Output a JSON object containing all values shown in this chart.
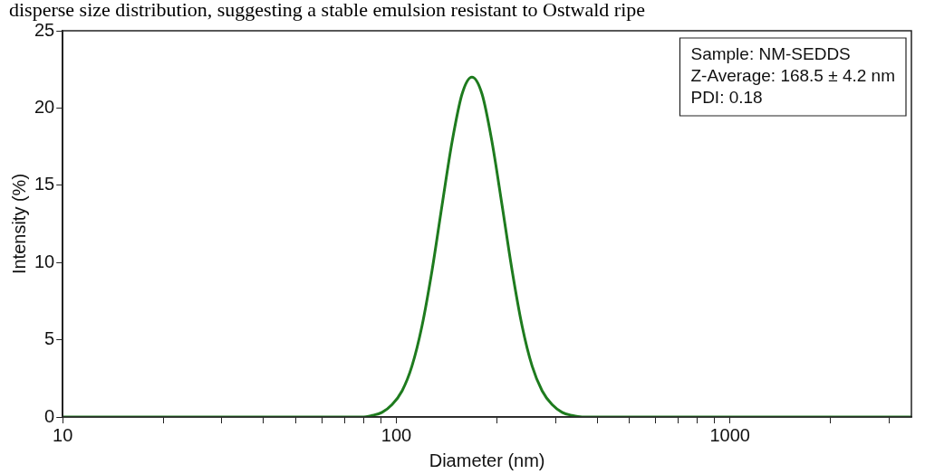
{
  "chart_data": {
    "type": "line",
    "xlabel": "Diameter (nm)",
    "ylabel": "Intensity (%)",
    "log": "x",
    "xlim": [
      10,
      3500
    ],
    "xticks": [
      10,
      {
        "value": 20,
        "label": null
      },
      {
        "value": 30,
        "label": null
      },
      {
        "value": 40,
        "label": null
      },
      {
        "value": 50,
        "label": null
      },
      {
        "value": 60,
        "label": null
      },
      {
        "value": 70,
        "label": null
      },
      {
        "value": 80,
        "label": null
      },
      {
        "value": 90,
        "label": null
      },
      100,
      {
        "value": 200,
        "label": null
      },
      {
        "value": 300,
        "label": null
      },
      {
        "value": 400,
        "label": null
      },
      {
        "value": 500,
        "label": null
      },
      {
        "value": 600,
        "label": null
      },
      {
        "value": 700,
        "label": null
      },
      {
        "value": 800,
        "label": null
      },
      {
        "value": 900,
        "label": null
      },
      1000,
      {
        "value": 2000,
        "label": null
      },
      {
        "value": 3000,
        "label": null
      }
    ],
    "ylim": [
      0,
      25
    ],
    "yticks": [
      0,
      5,
      10,
      15,
      20,
      25
    ],
    "grid": false,
    "legend": false,
    "marker": "none",
    "line_style": "solid",
    "annotations": [
      "disperse size distribution, suggesting a stable emulsion resistant to Ostwald ripe",
      "Sample: NM-SEDDS",
      "Z-Average: 168.5 ± 4.2 nm",
      "PDI: 0.18"
    ],
    "series": [
      {
        "color": "#1e7b1e",
        "x": [
          10,
          30,
          60,
          78.9,
          84.5,
          90.6,
          97.1,
          104.1,
          111.4,
          119.4,
          128,
          137.1,
          146.9,
          157.4,
          168.5,
          180.7,
          193.6,
          207.5,
          222.3,
          238.2,
          255.3,
          273.5,
          293.1,
          314.1,
          336.5,
          360.6,
          600,
          1500,
          3500
        ],
        "values": [
          0,
          0,
          0,
          0,
          0.1,
          0.3,
          0.8,
          1.7,
          3.3,
          5.9,
          9.5,
          13.7,
          17.8,
          20.9,
          22,
          20.9,
          17.8,
          13.7,
          9.5,
          5.9,
          3.3,
          1.7,
          0.8,
          0.3,
          0.1,
          0,
          0,
          0,
          0
        ]
      }
    ]
  }
}
